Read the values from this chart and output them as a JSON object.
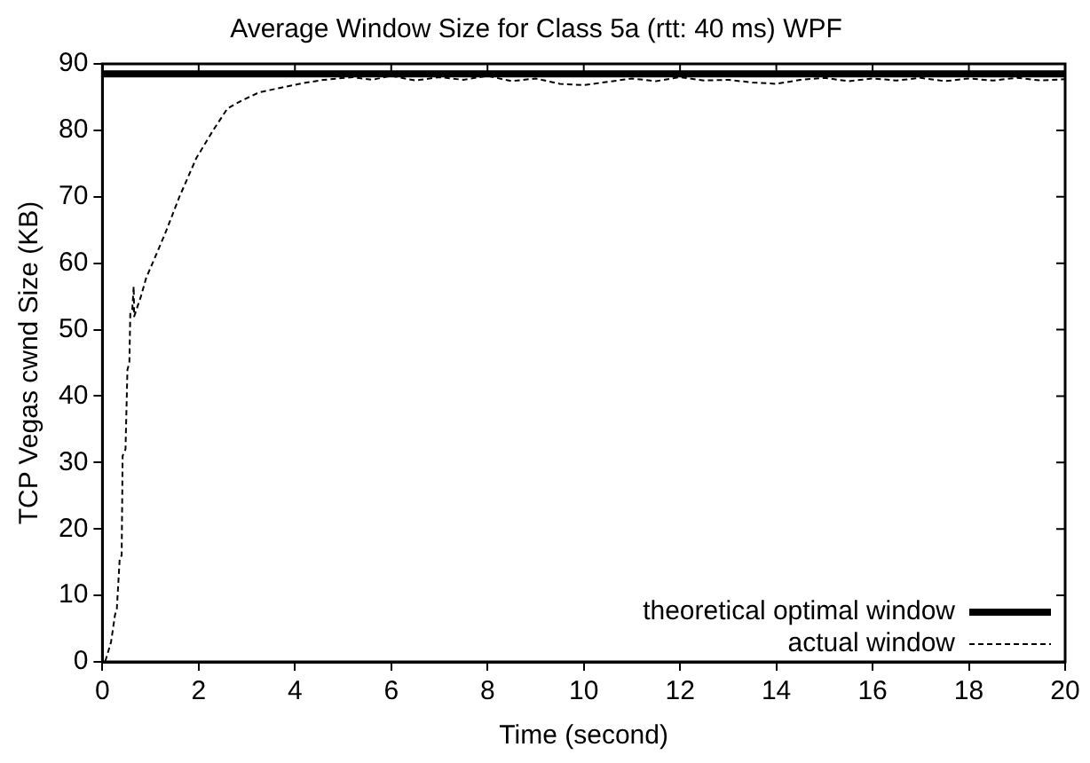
{
  "chart_data": {
    "type": "line",
    "title": "Average Window Size for Class 5a (rtt: 40 ms) WPF",
    "xlabel": "Time (second)",
    "ylabel": "TCP Vegas cwnd Size (KB)",
    "xlim": [
      0,
      20
    ],
    "xticks": [
      0,
      2,
      4,
      6,
      8,
      10,
      12,
      14,
      16,
      18,
      20
    ],
    "ylim": [
      0,
      90
    ],
    "yticks": [
      0,
      10,
      20,
      30,
      40,
      50,
      60,
      70,
      80,
      90
    ],
    "grid": false,
    "legend": "bottom right",
    "marker": "none",
    "series": [
      {
        "name": "theoretical optimal window",
        "color": "#000000",
        "line_style": "solid",
        "x": [
          0,
          20
        ],
        "values": [
          88.5,
          88.5
        ]
      },
      {
        "name": "actual window",
        "color": "#000000",
        "line_style": "dashed",
        "x": [
          0.06,
          0.18,
          0.26,
          0.3,
          0.36,
          0.4,
          0.42,
          0.48,
          0.52,
          0.56,
          0.58,
          0.62,
          0.65,
          0.66,
          0.8,
          0.91,
          1.1,
          1.3,
          1.6,
          1.95,
          2.3,
          2.6,
          2.9,
          3.25,
          3.7,
          4.16,
          4.6,
          5.2,
          5.6,
          6,
          6.5,
          7,
          7.5,
          8,
          8.5,
          9,
          9.5,
          10,
          10.5,
          11,
          11.5,
          12,
          12.5,
          13,
          13.5,
          14,
          14.5,
          15,
          15.5,
          16,
          16.5,
          17,
          17.5,
          18,
          18.5,
          19,
          19.5,
          20
        ],
        "values": [
          0.1,
          3,
          7,
          8,
          15.6,
          16,
          31,
          32,
          44,
          45,
          52.6,
          53,
          56.5,
          52,
          55,
          57.8,
          61,
          64.4,
          70,
          75.8,
          80,
          83.3,
          84.5,
          85.7,
          86.4,
          87.1,
          87.6,
          88,
          87.6,
          88.2,
          87.5,
          88,
          87.6,
          88.2,
          87.4,
          87.8,
          87,
          86.8,
          87.3,
          87.8,
          87.4,
          88,
          87.5,
          87.6,
          87.2,
          87,
          87.6,
          87.9,
          87.4,
          87.8,
          87.5,
          87.9,
          87.4,
          87.8,
          87.5,
          87.9,
          87.5,
          87.7
        ]
      }
    ]
  }
}
